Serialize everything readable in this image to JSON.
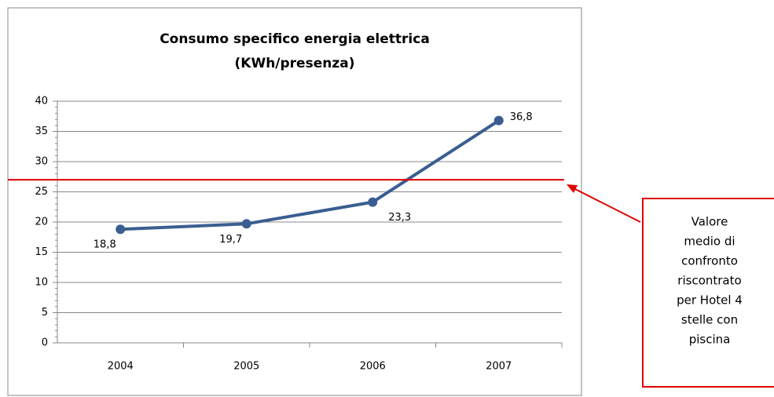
{
  "chart_data": {
    "type": "line",
    "title": "Consumo specifico energia elettrica",
    "subtitle": "(KWh/presenza)",
    "categories": [
      "2004",
      "2005",
      "2006",
      "2007"
    ],
    "series": [
      {
        "name": "Consumo",
        "color": "#3a5e91",
        "values": [
          18.8,
          19.7,
          23.3,
          36.8
        ],
        "value_labels": [
          "18,8",
          "19,7",
          "23,3",
          "36,8"
        ]
      }
    ],
    "ylim": [
      0,
      40
    ],
    "yticks": [
      0,
      5,
      10,
      15,
      20,
      25,
      30,
      35,
      40
    ],
    "grid": true,
    "reference_line": {
      "value": 27,
      "color": "#e00000"
    },
    "annotation": {
      "lines": [
        "Valore",
        "medio di",
        "confronto",
        "riscontrato",
        "per Hotel 4",
        "stelle con",
        "piscina"
      ]
    }
  }
}
